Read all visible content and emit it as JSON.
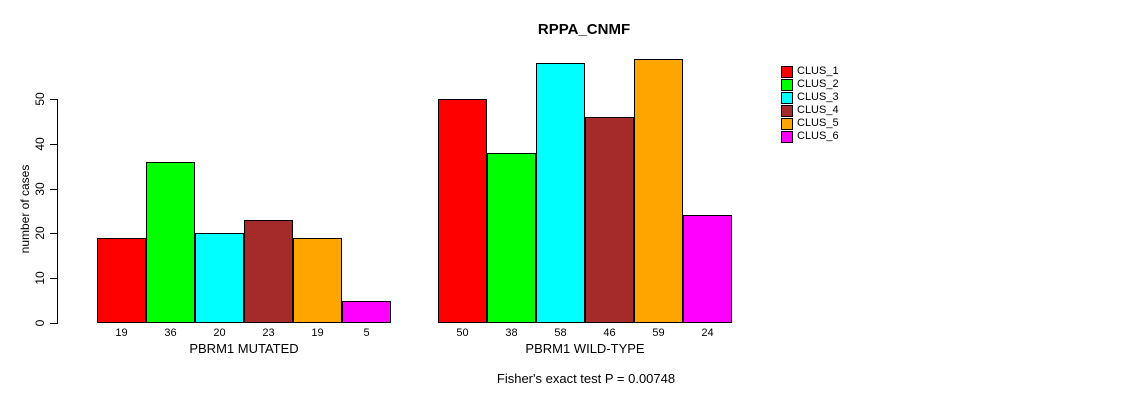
{
  "title": "RPPA_CNMF",
  "subtitle": "Fisher's exact test P = 0.00748",
  "y_axis": {
    "label": "number of cases",
    "tick_labels": [
      "0",
      "10",
      "20",
      "30",
      "40",
      "50"
    ]
  },
  "legend": {
    "entries": [
      {
        "label": "CLUS_1",
        "color": "#FF0000"
      },
      {
        "label": "CLUS_2",
        "color": "#00FF00"
      },
      {
        "label": "CLUS_3",
        "color": "#00FFFF"
      },
      {
        "label": "CLUS_4",
        "color": "#A52A2A"
      },
      {
        "label": "CLUS_5",
        "color": "#FFA500"
      },
      {
        "label": "CLUS_6",
        "color": "#FF00FF"
      }
    ]
  },
  "chart_data": {
    "type": "bar",
    "title": "RPPA_CNMF",
    "xlabel": "",
    "ylabel": "number of cases",
    "ylim": [
      0,
      50
    ],
    "yticks": [
      0,
      10,
      20,
      30,
      40,
      50
    ],
    "grid": false,
    "legend_position": "right",
    "annotation": "Fisher's exact test P = 0.00748",
    "categories": [
      "PBRM1 MUTATED",
      "PBRM1 WILD-TYPE"
    ],
    "series": [
      {
        "name": "CLUS_1",
        "color": "#FF0000",
        "values": [
          19,
          50
        ]
      },
      {
        "name": "CLUS_2",
        "color": "#00FF00",
        "values": [
          36,
          38
        ]
      },
      {
        "name": "CLUS_3",
        "color": "#00FFFF",
        "values": [
          20,
          58
        ]
      },
      {
        "name": "CLUS_4",
        "color": "#A52A2A",
        "values": [
          23,
          46
        ]
      },
      {
        "name": "CLUS_5",
        "color": "#FFA500",
        "values": [
          19,
          59
        ]
      },
      {
        "name": "CLUS_6",
        "color": "#FF00FF",
        "values": [
          5,
          24
        ]
      }
    ],
    "bar_value_labels_shown": true
  }
}
